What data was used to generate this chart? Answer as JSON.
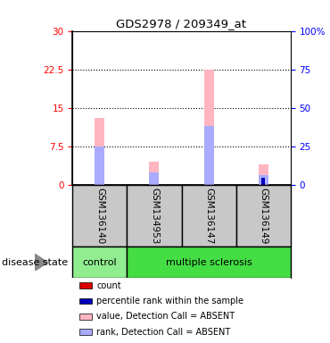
{
  "title": "GDS2978 / 209349_at",
  "samples": [
    "GSM136140",
    "GSM134953",
    "GSM136147",
    "GSM136149"
  ],
  "ylim_left": [
    0,
    30
  ],
  "ylim_right": [
    0,
    100
  ],
  "yticks_left": [
    0,
    7.5,
    15,
    22.5,
    30
  ],
  "yticks_right": [
    0,
    25,
    50,
    75,
    100
  ],
  "ytick_labels_right": [
    "0",
    "25",
    "50",
    "75",
    "100%"
  ],
  "bars": {
    "GSM136140": {
      "value_absent": 13.0,
      "rank_absent": 7.5,
      "count": null,
      "percentile": null
    },
    "GSM134953": {
      "value_absent": 4.5,
      "rank_absent": 2.5,
      "count": null,
      "percentile": null
    },
    "GSM136147": {
      "value_absent": 22.5,
      "rank_absent": 11.5,
      "count": null,
      "percentile": null
    },
    "GSM136149": {
      "value_absent": 4.0,
      "rank_absent": 2.0,
      "count": 1.5,
      "percentile": 1.5
    }
  },
  "colors": {
    "value_absent": "#FFB6C1",
    "rank_absent": "#AAAAFF",
    "count": "#DD0000",
    "percentile": "#0000BB",
    "control_bg": "#90EE90",
    "ms_bg": "#44DD44",
    "sample_bg": "#C8C8C8",
    "dotted_line": "#000000"
  },
  "bar_width": 0.18,
  "rank_bar_width": 0.18,
  "small_bar_width": 0.07,
  "legend_items": [
    {
      "label": "count",
      "color": "#DD0000"
    },
    {
      "label": "percentile rank within the sample",
      "color": "#0000BB"
    },
    {
      "label": "value, Detection Call = ABSENT",
      "color": "#FFB6C1"
    },
    {
      "label": "rank, Detection Call = ABSENT",
      "color": "#AAAAFF"
    }
  ]
}
